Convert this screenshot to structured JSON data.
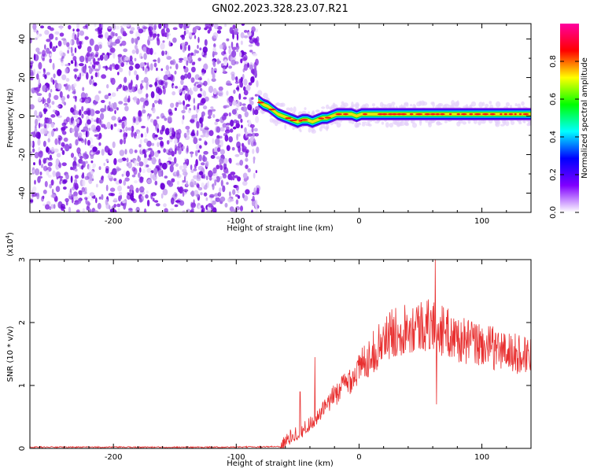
{
  "title": "GN02.2023.328.23.07.R21",
  "chart_data": [
    {
      "type": "heatmap",
      "xlabel": "Height of straight line (km)",
      "ylabel": "Frequency (Hz)",
      "xlim": [
        -268,
        140
      ],
      "ylim": [
        -50,
        48
      ],
      "x_ticks": [
        -200,
        -100,
        0,
        100
      ],
      "x_tick_labels": [
        "-200",
        "-100",
        "0",
        "100"
      ],
      "y_ticks": [
        -40,
        -20,
        0,
        20,
        40
      ],
      "y_tick_labels": [
        "-40",
        "-20",
        "0",
        "20",
        "40"
      ],
      "noise_region_x": [
        -268,
        -82
      ],
      "signal_track": {
        "x": [
          -82,
          -78,
          -74,
          -70,
          -66,
          -62,
          -58,
          -54,
          -50,
          -46,
          -42,
          -38,
          -34,
          -30,
          -26,
          -22,
          -18,
          -14,
          -10,
          -6,
          -2,
          2,
          6,
          10,
          14,
          18,
          22,
          26,
          30,
          34,
          38,
          42,
          46,
          50,
          54,
          58,
          62,
          66,
          70,
          74,
          78,
          82,
          86,
          90,
          94,
          98,
          102,
          106,
          110,
          114,
          118,
          122,
          126,
          130,
          134,
          138
        ],
        "frequency": [
          8,
          6,
          5,
          3,
          1,
          0,
          -1,
          -2,
          -3,
          -2,
          -2,
          -3,
          -2,
          -1,
          -1,
          0,
          1,
          1,
          1,
          1,
          0,
          1,
          1,
          1,
          1,
          1,
          1,
          1,
          1,
          1,
          1,
          1,
          1,
          1,
          1,
          1,
          1,
          1,
          1,
          1,
          1,
          1,
          1,
          1,
          1,
          1,
          1,
          1,
          1,
          1,
          1,
          1,
          1,
          1,
          1,
          1
        ]
      },
      "colorbar": {
        "label": "Normalized spectral amplitude",
        "range": [
          0,
          1
        ],
        "ticks": [
          0.0,
          0.2,
          0.4,
          0.6,
          0.8
        ],
        "tick_labels": [
          "0.0",
          "0.2",
          "0.4",
          "0.6",
          "0.8"
        ],
        "colormap": [
          "#ffffff",
          "#8000ff",
          "#0000ff",
          "#00ffff",
          "#00ff00",
          "#ffff00",
          "#ff0000",
          "#ff00a0"
        ]
      },
      "grid": false
    },
    {
      "type": "line",
      "xlabel": "Height of straight line (km)",
      "ylabel": "SNR (10 * v/v)",
      "y_multiplier_label": "(x10",
      "y_multiplier_exp": "4",
      "y_multiplier_close": ")",
      "xlim": [
        -268,
        140
      ],
      "ylim": [
        0,
        3
      ],
      "x_ticks": [
        -200,
        -100,
        0,
        100
      ],
      "x_tick_labels": [
        "-200",
        "-100",
        "0",
        "100"
      ],
      "y_ticks": [
        0,
        1,
        2,
        3
      ],
      "y_tick_labels": [
        "0",
        "1",
        "2",
        "3"
      ],
      "line_color": "#e83030",
      "series_envelope": {
        "x": [
          -268,
          -200,
          -100,
          -64,
          -60,
          -55,
          -50,
          -45,
          -40,
          -35,
          -30,
          -25,
          -20,
          -15,
          -10,
          -5,
          0,
          5,
          10,
          15,
          20,
          25,
          30,
          35,
          40,
          45,
          50,
          55,
          60,
          65,
          70,
          75,
          80,
          85,
          90,
          95,
          100,
          105,
          110,
          115,
          120,
          125,
          130,
          135,
          140
        ],
        "y": [
          0.02,
          0.02,
          0.02,
          0.03,
          0.1,
          0.2,
          0.25,
          0.3,
          0.4,
          0.45,
          0.6,
          0.7,
          0.85,
          0.95,
          1.05,
          1.15,
          1.25,
          1.4,
          1.5,
          1.6,
          1.7,
          1.8,
          1.85,
          1.9,
          1.95,
          1.95,
          1.95,
          1.95,
          1.95,
          1.9,
          1.85,
          1.8,
          1.75,
          1.7,
          1.7,
          1.65,
          1.65,
          1.6,
          1.6,
          1.55,
          1.55,
          1.5,
          1.5,
          1.5,
          1.5
        ]
      },
      "peaks": [
        {
          "x": -48,
          "y": 0.9
        },
        {
          "x": -36,
          "y": 1.45
        },
        {
          "x": 62,
          "y": 3.0
        },
        {
          "x": 63,
          "y": 0.7
        }
      ],
      "grid": false
    }
  ]
}
